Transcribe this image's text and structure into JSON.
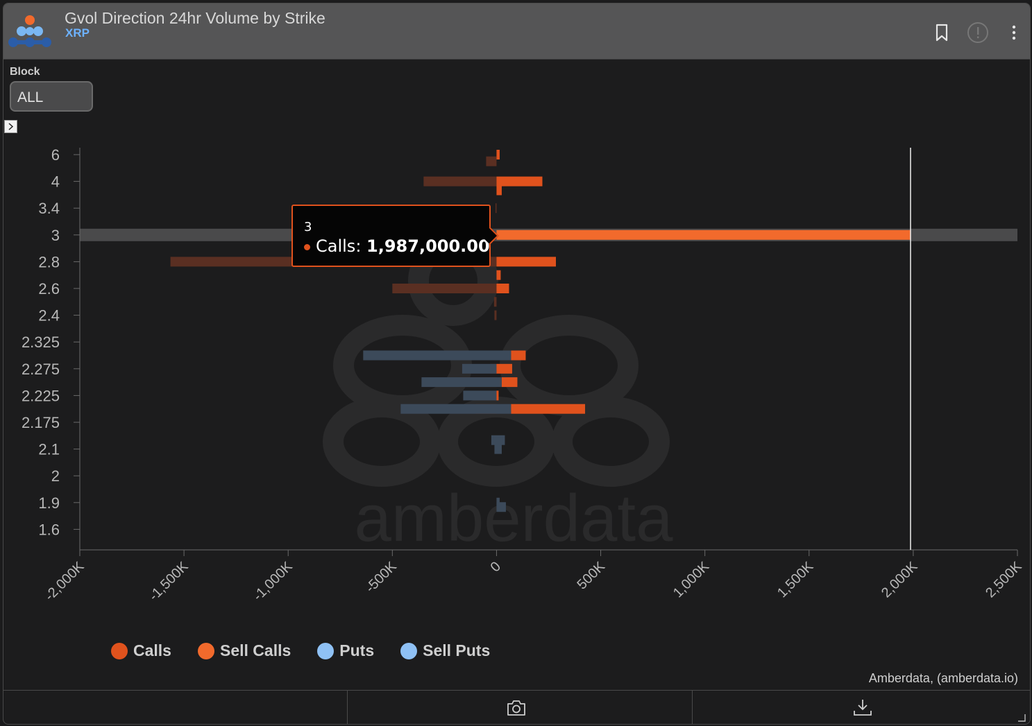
{
  "header": {
    "title": "Gvol Direction 24hr Volume by Strike",
    "subtitle": "XRP"
  },
  "filters": {
    "block_label": "Block",
    "block_value": "ALL"
  },
  "colors": {
    "calls": "#e0521d",
    "sell_calls": "#f26a2c",
    "puts": "#8fc1f5",
    "sell_puts": "#8fc1f5",
    "calls_neg": "#5a2f22",
    "puts_bar": "#3c4a5a",
    "highlight": "#4a4a4b"
  },
  "tooltip": {
    "x": "3",
    "series": "Calls",
    "value": "1,987,000.00"
  },
  "credit": "Amberdata, (amberdata.io)",
  "watermark": "amberdata",
  "chart_data": {
    "type": "bar",
    "orientation": "horizontal",
    "stacked": true,
    "categories": [
      "6",
      "4",
      "3.4",
      "3",
      "2.8",
      "2.6",
      "2.4",
      "2.325",
      "2.275",
      "2.225",
      "2.175",
      "2.1",
      "2",
      "1.9",
      "1.6"
    ],
    "xlim": [
      -2000000,
      2500000
    ],
    "xticks": [
      -2000000,
      -1500000,
      -1000000,
      -500000,
      0,
      500000,
      1000000,
      1500000,
      2000000,
      2500000
    ],
    "xtick_labels": [
      "-2,000K",
      "-1,500K",
      "-1,000K",
      "-500K",
      "0",
      "500K",
      "1,000K",
      "1,500K",
      "2,000K",
      "2,500K"
    ],
    "legend": [
      "Calls",
      "Sell Calls",
      "Puts",
      "Sell Puts"
    ],
    "legend_position": "bottom",
    "highlight_category": "3",
    "crosshair_x": 1987000,
    "bars": [
      {
        "y": 6.0,
        "calls_pos": 15000,
        "calls_neg": 0,
        "puts_pos": 0,
        "puts_neg": 0
      },
      {
        "y": 5.5,
        "calls_pos": 0,
        "calls_neg": -50000,
        "puts_pos": 0,
        "puts_neg": 0
      },
      {
        "y": 4.0,
        "calls_pos": 220000,
        "calls_neg": -350000,
        "puts_pos": 0,
        "puts_neg": 0
      },
      {
        "y": 3.8,
        "calls_pos": 25000,
        "calls_neg": 0,
        "puts_pos": 0,
        "puts_neg": 0
      },
      {
        "y": 3.4,
        "calls_pos": 0,
        "calls_neg": -5000,
        "puts_pos": 0,
        "puts_neg": 0
      },
      {
        "y": 3.0,
        "calls_pos": 1987000,
        "calls_neg": 0,
        "puts_pos": 0,
        "puts_neg": 0
      },
      {
        "y": 2.8,
        "calls_pos": 285000,
        "calls_neg": -1565000,
        "puts_pos": 0,
        "puts_neg": 0
      },
      {
        "y": 2.7,
        "calls_pos": 20000,
        "calls_neg": 0,
        "puts_pos": 0,
        "puts_neg": 0
      },
      {
        "y": 2.6,
        "calls_pos": 60000,
        "calls_neg": -500000,
        "puts_pos": 0,
        "puts_neg": 0
      },
      {
        "y": 2.5,
        "calls_pos": 0,
        "calls_neg": -12000,
        "puts_pos": 0,
        "puts_neg": 0
      },
      {
        "y": 2.4,
        "calls_pos": 0,
        "calls_neg": -10000,
        "puts_pos": 0,
        "puts_neg": 0
      },
      {
        "y": 2.3,
        "calls_pos": 70000,
        "calls_neg": -210000,
        "puts_pos": 70000,
        "puts_neg": -640000
      },
      {
        "y": 2.275,
        "calls_pos": 75000,
        "calls_neg": -30000,
        "puts_pos": 0,
        "puts_neg": -165000
      },
      {
        "y": 2.25,
        "calls_pos": 75000,
        "calls_neg": -175000,
        "puts_pos": 25000,
        "puts_neg": -360000
      },
      {
        "y": 2.225,
        "calls_pos": 5000,
        "calls_neg": -5000,
        "puts_pos": 0,
        "puts_neg": -160000
      },
      {
        "y": 2.2,
        "calls_pos": 355000,
        "calls_neg": -100000,
        "puts_pos": 70000,
        "puts_neg": -460000
      },
      {
        "y": 2.125,
        "calls_pos": 0,
        "calls_neg": 0,
        "puts_pos": 40000,
        "puts_neg": -25000
      },
      {
        "y": 2.1,
        "calls_pos": 0,
        "calls_neg": 0,
        "puts_pos": 25000,
        "puts_neg": -10000
      },
      {
        "y": 1.9,
        "calls_pos": 0,
        "calls_neg": 0,
        "puts_pos": 15000,
        "puts_neg": 0
      },
      {
        "y": 1.85,
        "calls_pos": 0,
        "calls_neg": 0,
        "puts_pos": 45000,
        "puts_neg": 0
      }
    ]
  }
}
